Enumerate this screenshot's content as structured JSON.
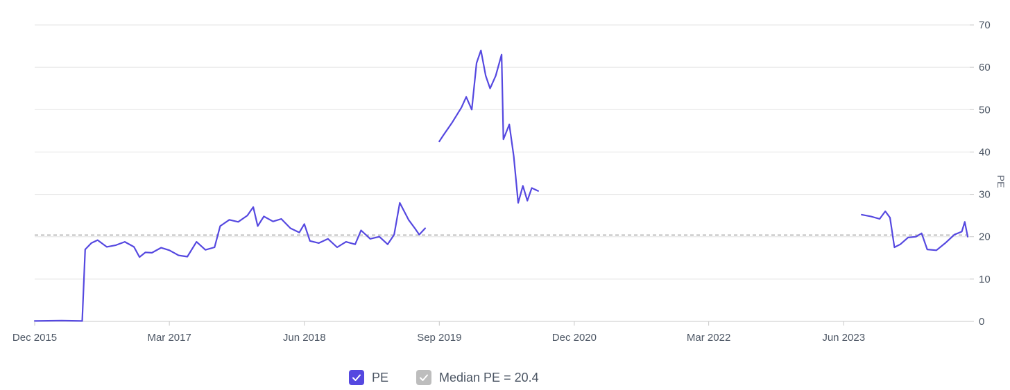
{
  "chart_data": {
    "type": "line",
    "xlabel": "",
    "ylabel": "PE",
    "y_axis_side": "right",
    "ylim": [
      0,
      70
    ],
    "y_ticks": [
      0,
      10,
      20,
      30,
      40,
      50,
      60,
      70
    ],
    "x_ticks": [
      {
        "date": "2015-12-01",
        "label": "Dec 2015"
      },
      {
        "date": "2017-03-01",
        "label": "Mar 2017"
      },
      {
        "date": "2018-06-01",
        "label": "Jun 2018"
      },
      {
        "date": "2019-09-01",
        "label": "Sep 2019"
      },
      {
        "date": "2020-12-01",
        "label": "Dec 2020"
      },
      {
        "date": "2022-03-01",
        "label": "Mar 2022"
      },
      {
        "date": "2023-06-01",
        "label": "Jun 2023"
      }
    ],
    "xlim": [
      "2015-12-01",
      "2024-08-01"
    ],
    "grid": true,
    "median_line": {
      "value": 20.4,
      "label": "Median PE = 20.4"
    },
    "series": [
      {
        "name": "PE",
        "color": "#5548e0",
        "segments": [
          [
            [
              "2015-12-01",
              0.1
            ],
            [
              "2016-03-01",
              0.2
            ],
            [
              "2016-05-10",
              0.1
            ],
            [
              "2016-05-20",
              17.0
            ],
            [
              "2016-06-10",
              18.5
            ],
            [
              "2016-07-01",
              19.2
            ],
            [
              "2016-08-01",
              17.6
            ],
            [
              "2016-09-01",
              18.0
            ],
            [
              "2016-10-01",
              18.8
            ],
            [
              "2016-11-01",
              17.6
            ],
            [
              "2016-11-20",
              15.2
            ],
            [
              "2016-12-10",
              16.3
            ],
            [
              "2017-01-01",
              16.2
            ],
            [
              "2017-02-01",
              17.4
            ],
            [
              "2017-03-01",
              16.8
            ],
            [
              "2017-04-01",
              15.6
            ],
            [
              "2017-05-01",
              15.3
            ],
            [
              "2017-06-01",
              18.8
            ],
            [
              "2017-07-01",
              16.9
            ],
            [
              "2017-08-01",
              17.5
            ],
            [
              "2017-08-20",
              22.5
            ],
            [
              "2017-09-20",
              24.0
            ],
            [
              "2017-10-20",
              23.5
            ],
            [
              "2017-11-20",
              25.0
            ],
            [
              "2017-12-10",
              27.0
            ],
            [
              "2017-12-25",
              22.5
            ],
            [
              "2018-01-15",
              24.8
            ],
            [
              "2018-02-15",
              23.6
            ],
            [
              "2018-03-15",
              24.2
            ],
            [
              "2018-04-15",
              22.0
            ],
            [
              "2018-05-15",
              21.0
            ],
            [
              "2018-06-01",
              23.0
            ],
            [
              "2018-06-20",
              19.0
            ],
            [
              "2018-07-20",
              18.5
            ],
            [
              "2018-08-20",
              19.5
            ],
            [
              "2018-09-20",
              17.5
            ],
            [
              "2018-10-20",
              18.8
            ],
            [
              "2018-11-20",
              18.2
            ],
            [
              "2018-12-10",
              21.5
            ],
            [
              "2019-01-10",
              19.5
            ],
            [
              "2019-02-10",
              20.0
            ],
            [
              "2019-03-10",
              18.2
            ],
            [
              "2019-04-01",
              20.5
            ],
            [
              "2019-04-20",
              28.0
            ],
            [
              "2019-05-20",
              24.0
            ],
            [
              "2019-06-10",
              22.0
            ],
            [
              "2019-06-25",
              20.5
            ],
            [
              "2019-07-15",
              22.0
            ]
          ],
          [
            [
              "2019-09-01",
              42.5
            ],
            [
              "2019-09-15",
              44.0
            ],
            [
              "2019-10-15",
              47.0
            ],
            [
              "2019-11-15",
              50.5
            ],
            [
              "2019-12-01",
              53.0
            ],
            [
              "2019-12-20",
              50.0
            ],
            [
              "2020-01-05",
              61.0
            ],
            [
              "2020-01-20",
              64.0
            ],
            [
              "2020-02-05",
              58.0
            ],
            [
              "2020-02-20",
              55.0
            ],
            [
              "2020-03-10",
              58.0
            ],
            [
              "2020-03-30",
              63.0
            ],
            [
              "2020-04-05",
              43.0
            ],
            [
              "2020-04-25",
              46.5
            ],
            [
              "2020-05-10",
              39.0
            ],
            [
              "2020-05-25",
              28.0
            ],
            [
              "2020-06-10",
              32.0
            ],
            [
              "2020-06-25",
              28.5
            ],
            [
              "2020-07-10",
              31.5
            ],
            [
              "2020-08-01",
              30.8
            ]
          ],
          [
            [
              "2023-08-01",
              25.2
            ],
            [
              "2023-09-01",
              24.8
            ],
            [
              "2023-10-01",
              24.2
            ],
            [
              "2023-10-20",
              26.0
            ],
            [
              "2023-11-05",
              24.5
            ],
            [
              "2023-11-20",
              17.5
            ],
            [
              "2023-12-10",
              18.2
            ],
            [
              "2024-01-05",
              19.8
            ],
            [
              "2024-02-01",
              20.0
            ],
            [
              "2024-02-20",
              20.8
            ],
            [
              "2024-03-10",
              17.0
            ],
            [
              "2024-04-10",
              16.8
            ],
            [
              "2024-05-10",
              18.5
            ],
            [
              "2024-06-10",
              20.5
            ],
            [
              "2024-07-05",
              21.2
            ],
            [
              "2024-07-15",
              23.5
            ],
            [
              "2024-07-25",
              20.0
            ]
          ]
        ]
      }
    ],
    "legend": {
      "placement": "bottom-center",
      "items": [
        {
          "label": "PE",
          "color": "#5548e0",
          "checked": true
        },
        {
          "label": "Median PE = 20.4",
          "color": "#bdbdbd",
          "checked": true
        }
      ]
    }
  }
}
